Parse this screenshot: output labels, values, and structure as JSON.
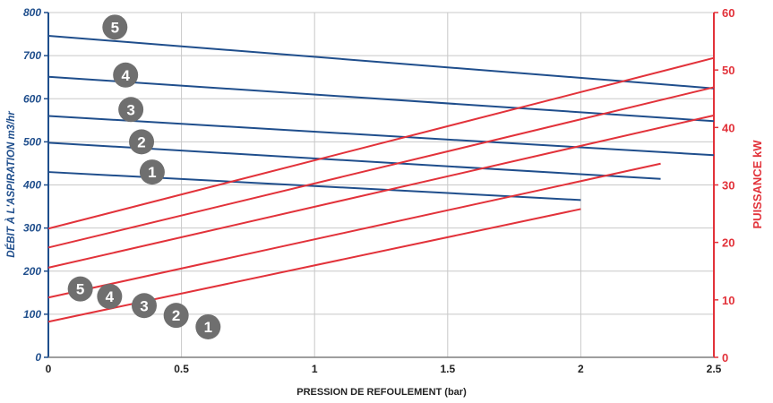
{
  "chart_data": {
    "type": "line",
    "xlabel": "PRESSION DE REFOULEMENT  (bar)",
    "ylabel_left": "DÉBIT À L'ASPIRATION m3/hr",
    "ylabel_right": "PUISSANCE kW",
    "xlim": [
      0,
      2.5
    ],
    "ylim_left": [
      0,
      800
    ],
    "ylim_right": [
      0,
      60
    ],
    "x_ticks": [
      "0",
      "0.5",
      "1",
      "1.5",
      "2",
      "2.5"
    ],
    "y_left_ticks": [
      "0",
      "100",
      "200",
      "300",
      "400",
      "500",
      "600",
      "700",
      "800"
    ],
    "y_right_ticks": [
      "0",
      "10",
      "20",
      "30",
      "40",
      "50",
      "60"
    ],
    "grid": true,
    "colors": {
      "flow": "#1f4e8c",
      "power": "#e2323a",
      "badge": "#6f6f6f"
    },
    "flow_series": [
      {
        "name": "1",
        "axis": "left",
        "x": [
          0,
          2.0
        ],
        "y": [
          430,
          365
        ]
      },
      {
        "name": "2",
        "axis": "left",
        "x": [
          0,
          2.3
        ],
        "y": [
          498,
          414
        ]
      },
      {
        "name": "3",
        "axis": "left",
        "x": [
          0,
          2.5
        ],
        "y": [
          560,
          469
        ]
      },
      {
        "name": "4",
        "axis": "left",
        "x": [
          0,
          2.5
        ],
        "y": [
          651,
          548
        ]
      },
      {
        "name": "5",
        "axis": "left",
        "x": [
          0,
          2.5
        ],
        "y": [
          746,
          624
        ]
      }
    ],
    "power_series": [
      {
        "name": "1",
        "axis": "right",
        "x": [
          0,
          2.0
        ],
        "y": [
          6.2,
          25.8
        ]
      },
      {
        "name": "2",
        "axis": "right",
        "x": [
          0,
          2.3
        ],
        "y": [
          10.4,
          33.7
        ]
      },
      {
        "name": "3",
        "axis": "right",
        "x": [
          0,
          2.5
        ],
        "y": [
          15.6,
          42.1
        ]
      },
      {
        "name": "4",
        "axis": "right",
        "x": [
          0,
          2.5
        ],
        "y": [
          19.1,
          47.0
        ]
      },
      {
        "name": "5",
        "axis": "right",
        "x": [
          0,
          2.5
        ],
        "y": [
          22.4,
          52.1
        ]
      }
    ],
    "flow_badges": [
      {
        "label": "1",
        "x": 0.39,
        "y": 430
      },
      {
        "label": "2",
        "x": 0.35,
        "y": 500
      },
      {
        "label": "3",
        "x": 0.31,
        "y": 575
      },
      {
        "label": "4",
        "x": 0.29,
        "y": 655
      },
      {
        "label": "5",
        "x": 0.25,
        "y": 766
      }
    ],
    "power_badges": [
      {
        "label": "1",
        "x": 0.6,
        "y": 5.3
      },
      {
        "label": "2",
        "x": 0.48,
        "y": 7.3
      },
      {
        "label": "3",
        "x": 0.36,
        "y": 9.0
      },
      {
        "label": "4",
        "x": 0.23,
        "y": 10.6
      },
      {
        "label": "5",
        "x": 0.12,
        "y": 11.9
      }
    ]
  }
}
